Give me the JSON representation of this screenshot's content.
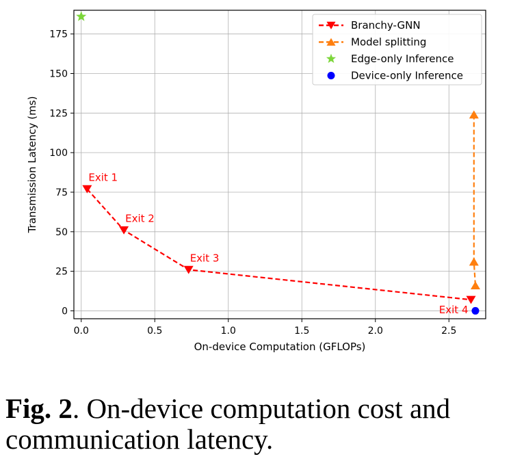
{
  "chart_data": {
    "type": "line",
    "xlabel": "On-device Computation (GFLOPs)",
    "ylabel": "Transmission Latency (ms)",
    "xlim": [
      -0.05,
      2.75
    ],
    "ylim": [
      -5,
      190
    ],
    "xticks": [
      0.0,
      0.5,
      1.0,
      1.5,
      2.0,
      2.5
    ],
    "xtick_labels": [
      "0.0",
      "0.5",
      "1.0",
      "1.5",
      "2.0",
      "2.5"
    ],
    "yticks": [
      0,
      25,
      50,
      75,
      100,
      125,
      150,
      175
    ],
    "ytick_labels": [
      "0",
      "25",
      "50",
      "75",
      "100",
      "125",
      "150",
      "175"
    ],
    "grid": true,
    "legend_position": "top-right",
    "series": [
      {
        "name": "Branchy-GNN",
        "style": "dashed-line",
        "marker": "triangle-down",
        "color": "#ff0000",
        "x": [
          0.04,
          0.29,
          0.73,
          2.65
        ],
        "y": [
          77,
          51,
          26,
          7
        ]
      },
      {
        "name": "Model splitting",
        "style": "dashed-line",
        "marker": "triangle-up",
        "color": "#ff7f0e",
        "x": [
          2.67,
          2.67,
          2.68
        ],
        "y": [
          124,
          31,
          16
        ]
      },
      {
        "name": "Edge-only Inference",
        "style": "marker",
        "marker": "star",
        "color": "#7cd63a",
        "x": [
          0.0
        ],
        "y": [
          186
        ]
      },
      {
        "name": "Device-only Inference",
        "style": "marker",
        "marker": "circle",
        "color": "#0000ff",
        "x": [
          2.68
        ],
        "y": [
          0
        ]
      }
    ],
    "annotations": [
      {
        "text": "Exit 1",
        "x": 0.04,
        "y": 77,
        "anchor": "above-right"
      },
      {
        "text": "Exit 2",
        "x": 0.29,
        "y": 51,
        "anchor": "above-right"
      },
      {
        "text": "Exit 3",
        "x": 0.73,
        "y": 26,
        "anchor": "above-right"
      },
      {
        "text": "Exit 4",
        "x": 2.65,
        "y": 7,
        "anchor": "below-left"
      }
    ]
  },
  "caption": {
    "label": "Fig. 2",
    "text": ".  On-device computation cost and communication latency."
  }
}
